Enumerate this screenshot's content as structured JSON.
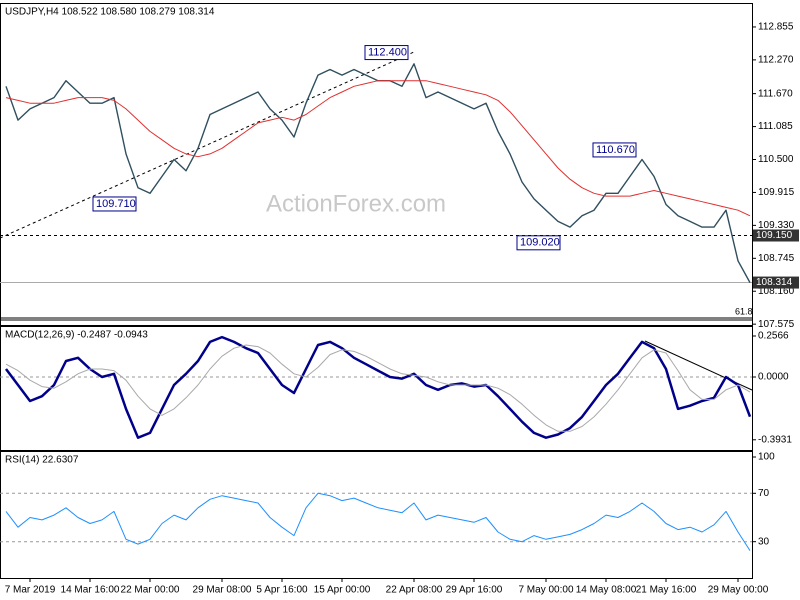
{
  "chart_data": [
    {
      "type": "line",
      "title": "USDJPY,H4  108.522 108.580 108.279 108.314",
      "watermark": "ActionForex.com",
      "fib_label": "61.8",
      "categories": [
        null,
        null,
        "7 Mar 2019",
        null,
        null,
        null,
        null,
        "14 Mar 16:00",
        null,
        null,
        null,
        null,
        "22 Mar 00:00",
        null,
        null,
        null,
        null,
        null,
        "29 Mar 08:00",
        null,
        null,
        null,
        null,
        "5 Apr 16:00",
        null,
        null,
        null,
        null,
        "15 Apr 00:00",
        null,
        null,
        null,
        null,
        null,
        "22 Apr 08:00",
        null,
        null,
        null,
        null,
        "29 Apr 16:00",
        null,
        null,
        null,
        null,
        null,
        "7 May 00:00",
        null,
        null,
        null,
        null,
        "14 May 08:00",
        null,
        null,
        null,
        null,
        "21 May 16:00",
        null,
        null,
        null,
        null,
        null,
        "29 May 00:00",
        null
      ],
      "series": [
        {
          "color": "#2f4f5f",
          "values": [
            111.8,
            111.2,
            111.4,
            111.5,
            111.6,
            111.9,
            111.7,
            111.5,
            111.5,
            111.6,
            110.6,
            110.0,
            109.9,
            110.2,
            110.5,
            110.3,
            110.7,
            111.3,
            111.4,
            111.5,
            111.6,
            111.7,
            111.4,
            111.2,
            110.9,
            111.5,
            112.0,
            112.1,
            112.0,
            112.1,
            112.0,
            111.9,
            111.9,
            111.8,
            112.2,
            111.6,
            111.7,
            111.6,
            111.5,
            111.4,
            111.5,
            111.0,
            110.6,
            110.1,
            109.8,
            109.6,
            109.4,
            109.3,
            109.5,
            109.6,
            109.9,
            109.9,
            110.2,
            110.5,
            110.2,
            109.7,
            109.5,
            109.4,
            109.3,
            109.3,
            109.6,
            108.7,
            108.314
          ]
        },
        {
          "color": "#e03030",
          "values": [
            111.6,
            111.55,
            111.5,
            111.5,
            111.5,
            111.55,
            111.6,
            111.6,
            111.6,
            111.55,
            111.4,
            111.2,
            111.0,
            110.85,
            110.7,
            110.6,
            110.55,
            110.6,
            110.7,
            110.85,
            111.0,
            111.15,
            111.2,
            111.25,
            111.2,
            111.3,
            111.45,
            111.6,
            111.7,
            111.8,
            111.85,
            111.9,
            111.9,
            111.9,
            111.9,
            111.9,
            111.85,
            111.8,
            111.75,
            111.7,
            111.65,
            111.55,
            111.35,
            111.1,
            110.85,
            110.6,
            110.35,
            110.15,
            110.0,
            109.9,
            109.85,
            109.85,
            109.85,
            109.9,
            109.95,
            109.9,
            109.85,
            109.8,
            109.75,
            109.7,
            109.65,
            109.6,
            109.5
          ]
        }
      ],
      "ylim": [
        107.56,
        113.245
      ],
      "yticks": [
        112.855,
        {
          "value": 112.27,
          "label": "112.270"
        },
        {
          "value": 111.67,
          "label": "111.670"
        },
        111.085,
        {
          "value": 110.5,
          "label": "110.500"
        },
        109.915,
        {
          "value": 109.33,
          "label": "109.330"
        },
        108.745,
        {
          "value": 108.16,
          "label": "108.160"
        },
        107.575
      ],
      "annotations": [
        {
          "value": 112.4,
          "label": "112.400"
        },
        {
          "value": 109.71,
          "label": "109.710"
        },
        {
          "value": 110.67,
          "label": "110.670"
        },
        {
          "value": 109.02,
          "label": "109.020"
        }
      ],
      "levels": [
        {
          "value": 109.15,
          "label": "109.150",
          "style": "dashed"
        },
        {
          "value": 108.314,
          "label": "108.314",
          "style": "solid"
        }
      ]
    },
    {
      "type": "line",
      "title": "MACD(12,26,9) -0.2487 -0.0943",
      "series": [
        {
          "color": "#00008b",
          "values": [
            0.05,
            -0.05,
            -0.15,
            -0.12,
            -0.05,
            0.1,
            0.12,
            0.05,
            0.0,
            0.02,
            -0.2,
            -0.38,
            -0.35,
            -0.2,
            -0.05,
            0.02,
            0.1,
            0.22,
            0.25,
            0.22,
            0.18,
            0.15,
            0.05,
            -0.05,
            -0.1,
            0.05,
            0.2,
            0.22,
            0.18,
            0.12,
            0.08,
            0.04,
            0.0,
            -0.01,
            0.02,
            -0.05,
            -0.08,
            -0.05,
            -0.04,
            -0.06,
            -0.05,
            -0.12,
            -0.2,
            -0.28,
            -0.35,
            -0.38,
            -0.36,
            -0.32,
            -0.25,
            -0.15,
            -0.05,
            0.02,
            0.12,
            0.22,
            0.18,
            0.05,
            -0.2,
            -0.18,
            -0.15,
            -0.13,
            0.0,
            -0.05,
            -0.2487
          ]
        },
        {
          "color": "#a9a9a9",
          "values": [
            0.08,
            0.04,
            -0.02,
            -0.06,
            -0.07,
            -0.03,
            0.02,
            0.05,
            0.05,
            0.04,
            -0.02,
            -0.12,
            -0.2,
            -0.24,
            -0.2,
            -0.13,
            -0.05,
            0.05,
            0.13,
            0.18,
            0.2,
            0.19,
            0.15,
            0.08,
            0.02,
            0.0,
            0.06,
            0.14,
            0.17,
            0.16,
            0.13,
            0.09,
            0.05,
            0.02,
            0.01,
            0.0,
            -0.03,
            -0.05,
            -0.05,
            -0.05,
            -0.05,
            -0.07,
            -0.11,
            -0.17,
            -0.24,
            -0.3,
            -0.34,
            -0.34,
            -0.31,
            -0.25,
            -0.17,
            -0.08,
            0.02,
            0.12,
            0.17,
            0.15,
            0.04,
            -0.08,
            -0.14,
            -0.14,
            -0.08,
            -0.05,
            -0.0943
          ]
        }
      ],
      "ylim": [
        -0.457,
        0.3067
      ],
      "yticks": [
        0.2566,
        {
          "value": 0,
          "label": "0.0000"
        },
        -0.3931
      ],
      "hlines": [
        0
      ]
    },
    {
      "type": "line",
      "title": "RSI(14) 22.6307",
      "series": [
        {
          "color": "#1e90ff",
          "values": [
            55,
            42,
            50,
            48,
            52,
            58,
            50,
            45,
            48,
            55,
            32,
            28,
            32,
            45,
            52,
            48,
            58,
            65,
            68,
            66,
            64,
            62,
            50,
            42,
            35,
            58,
            70,
            68,
            64,
            66,
            62,
            58,
            56,
            54,
            62,
            48,
            52,
            50,
            48,
            46,
            50,
            38,
            32,
            30,
            35,
            32,
            34,
            36,
            40,
            45,
            52,
            50,
            55,
            62,
            55,
            45,
            40,
            42,
            38,
            44,
            55,
            38,
            22.6307
          ]
        }
      ],
      "ylim": [
        0,
        103.3
      ],
      "yticks": [
        100,
        70,
        30
      ],
      "hlines": [
        70,
        30
      ]
    }
  ]
}
